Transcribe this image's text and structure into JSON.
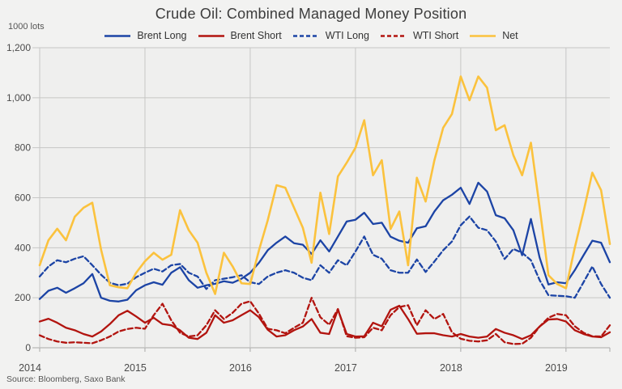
{
  "title": "Crude Oil: Combined Managed Money Position",
  "unit_label": "1000 lots",
  "source": "Source: Bloomberg,  Saxo Bank",
  "colors": {
    "background": "#f2f2f1",
    "plot_background": "#efefee",
    "gridline": "#c6c6c5",
    "axis_line": "#a9a9a8",
    "title_text": "#3c3c3c",
    "axis_text": "#4b4b4b",
    "brent_blue": "#1c44a5",
    "brent_red": "#b2140f",
    "net_yellow": "#fbc23d"
  },
  "chart_data": {
    "type": "line",
    "title": "Crude Oil: Combined Managed Money Position",
    "unit": "1000 lots",
    "grid": true,
    "legend_position": "top",
    "x_start": "2014-01",
    "x_end": "2019-06",
    "x_step": "1 month (weekly data approximated monthly)",
    "x_tick_labels": [
      "2014",
      "2015",
      "2016",
      "2017",
      "2018",
      "2019"
    ],
    "x_tick_month_index": [
      0,
      12,
      24,
      36,
      48,
      60
    ],
    "ylim": [
      0,
      1200
    ],
    "y_ticks": [
      0,
      200,
      400,
      600,
      800,
      1000,
      1200
    ],
    "y_tick_labels": [
      "0",
      "200",
      "400",
      "600",
      "800",
      "1,000",
      "1,200"
    ],
    "series": [
      {
        "name": "Brent Long",
        "color": "#1c44a5",
        "style": "solid",
        "values": [
          195,
          228,
          240,
          220,
          238,
          258,
          295,
          200,
          188,
          185,
          192,
          230,
          250,
          262,
          252,
          300,
          322,
          270,
          240,
          250,
          256,
          266,
          260,
          276,
          300,
          340,
          390,
          420,
          445,
          418,
          412,
          375,
          430,
          385,
          445,
          505,
          512,
          540,
          495,
          500,
          444,
          428,
          420,
          478,
          486,
          545,
          590,
          612,
          640,
          575,
          660,
          625,
          530,
          518,
          470,
          370,
          515,
          360,
          253,
          262,
          258,
          310,
          370,
          428,
          420,
          342
        ]
      },
      {
        "name": "Brent Short",
        "color": "#b2140f",
        "style": "solid",
        "values": [
          105,
          116,
          100,
          80,
          70,
          55,
          45,
          65,
          95,
          130,
          148,
          125,
          100,
          120,
          95,
          90,
          70,
          40,
          35,
          60,
          130,
          100,
          110,
          130,
          150,
          122,
          72,
          45,
          50,
          70,
          85,
          115,
          60,
          55,
          152,
          55,
          45,
          46,
          100,
          86,
          152,
          168,
          115,
          56,
          58,
          58,
          50,
          45,
          55,
          45,
          40,
          45,
          75,
          60,
          50,
          35,
          50,
          85,
          113,
          115,
          105,
          70,
          55,
          45,
          42,
          62
        ]
      },
      {
        "name": "WTI Long",
        "color": "#1c44a5",
        "style": "dashed",
        "values": [
          285,
          325,
          350,
          342,
          356,
          366,
          330,
          292,
          260,
          250,
          256,
          282,
          300,
          316,
          305,
          330,
          335,
          300,
          285,
          235,
          270,
          276,
          282,
          290,
          262,
          255,
          285,
          300,
          310,
          300,
          280,
          270,
          330,
          300,
          350,
          330,
          385,
          445,
          372,
          356,
          310,
          300,
          300,
          353,
          303,
          345,
          390,
          425,
          490,
          525,
          480,
          470,
          425,
          355,
          395,
          380,
          350,
          270,
          210,
          208,
          206,
          200,
          262,
          325,
          255,
          200
        ]
      },
      {
        "name": "WTI Short",
        "color": "#b2140f",
        "style": "dashed",
        "values": [
          50,
          35,
          25,
          20,
          22,
          20,
          18,
          30,
          45,
          65,
          75,
          80,
          76,
          130,
          176,
          110,
          60,
          45,
          50,
          90,
          150,
          115,
          140,
          176,
          186,
          136,
          76,
          70,
          58,
          80,
          100,
          200,
          122,
          92,
          155,
          46,
          40,
          42,
          80,
          70,
          130,
          163,
          170,
          90,
          150,
          115,
          135,
          62,
          36,
          28,
          25,
          30,
          55,
          22,
          15,
          16,
          40,
          85,
          120,
          135,
          130,
          86,
          60,
          46,
          45,
          90
        ]
      },
      {
        "name": "Net",
        "color": "#fbc23d",
        "style": "solid",
        "values": [
          330,
          430,
          476,
          430,
          524,
          560,
          580,
          392,
          250,
          242,
          238,
          300,
          346,
          380,
          352,
          372,
          550,
          470,
          420,
          300,
          215,
          380,
          325,
          258,
          255,
          390,
          510,
          650,
          640,
          560,
          480,
          340,
          620,
          455,
          685,
          740,
          800,
          910,
          690,
          750,
          475,
          545,
          330,
          680,
          585,
          750,
          880,
          935,
          1085,
          990,
          1085,
          1040,
          870,
          890,
          770,
          690,
          820,
          560,
          290,
          255,
          238,
          400,
          545,
          700,
          630,
          415
        ]
      }
    ]
  }
}
